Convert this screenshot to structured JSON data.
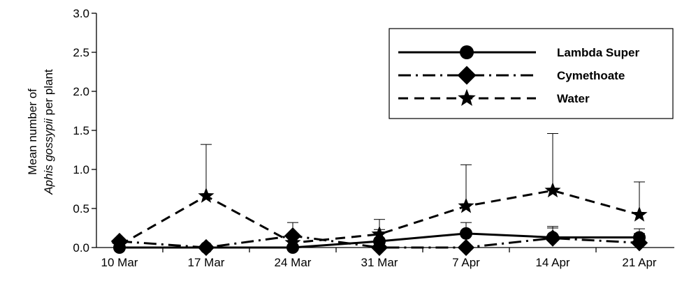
{
  "chart_data": {
    "type": "line",
    "title": "",
    "xlabel": "",
    "ylabel": {
      "line1": "Mean number of",
      "line2_italic": "Aphis gossypii",
      "line2_rest": " per plant"
    },
    "categories": [
      "10 Mar",
      "17 Mar",
      "24 Mar",
      "31 Mar",
      "7 Apr",
      "14 Apr",
      "21 Apr"
    ],
    "ylim": [
      0,
      3.0
    ],
    "yticks": [
      "0.0",
      "0.5",
      "1.0",
      "1.5",
      "2.0",
      "2.5",
      "3.0"
    ],
    "legend_position": "top-right",
    "series": [
      {
        "name": "Lambda Super",
        "marker": "circle",
        "dash": "solid",
        "values": [
          0.0,
          0.0,
          0.0,
          0.08,
          0.18,
          0.13,
          0.13
        ],
        "error_upper": [
          null,
          null,
          null,
          0.23,
          0.32,
          0.25,
          0.24
        ]
      },
      {
        "name": "Cymethoate",
        "marker": "diamond",
        "dash": "dashdot",
        "values": [
          0.08,
          0.0,
          0.15,
          0.0,
          0.0,
          0.12,
          0.06
        ],
        "error_upper": [
          null,
          null,
          0.32,
          null,
          null,
          0.27,
          0.18
        ]
      },
      {
        "name": "Water",
        "marker": "star",
        "dash": "dashed",
        "values": [
          0.03,
          0.66,
          0.06,
          0.17,
          0.53,
          0.73,
          0.42
        ],
        "error_upper": [
          null,
          1.32,
          null,
          0.36,
          1.06,
          1.46,
          0.84
        ]
      }
    ]
  }
}
